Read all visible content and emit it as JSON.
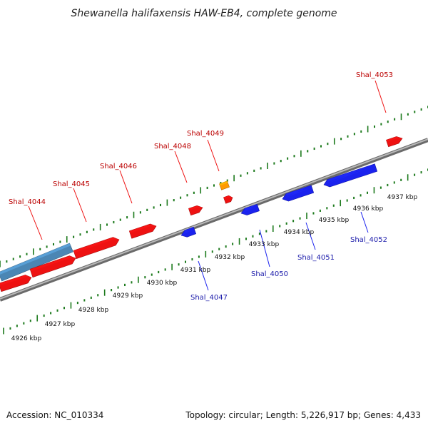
{
  "title": "Shewanella halifaxensis HAW-EB4, complete genome",
  "footer": {
    "accession": "Accession: NC_010334",
    "summary": "Topology: circular; Length: 5,226,917 bp; Genes: 4,433"
  },
  "colors": {
    "forward": "#ee1111",
    "reverse": "#1a22ee",
    "orange": "#ff9900",
    "steelblue": "#4b86b4",
    "backbone": "#888888",
    "ticks": "#1d7a1d",
    "forward_label": "#bb0000",
    "reverse_label": "#1a1aaa"
  },
  "tick_labels": [
    {
      "text": "4926 kbp",
      "kbp": 4926
    },
    {
      "text": "4927 kbp",
      "kbp": 4927
    },
    {
      "text": "4928 kbp",
      "kbp": 4928
    },
    {
      "text": "4929 kbp",
      "kbp": 4929
    },
    {
      "text": "4930 kbp",
      "kbp": 4930
    },
    {
      "text": "4931 kbp",
      "kbp": 4931
    },
    {
      "text": "4932 kbp",
      "kbp": 4932
    },
    {
      "text": "4933 kbp",
      "kbp": 4933
    },
    {
      "text": "4934 kbp",
      "kbp": 4934
    },
    {
      "text": "4935 kbp",
      "kbp": 4935
    },
    {
      "text": "4936 kbp",
      "kbp": 4936
    },
    {
      "text": "4937 kbp",
      "kbp": 4937
    }
  ],
  "genes": [
    {
      "label": "Shal_4044",
      "strand": "forward"
    },
    {
      "label": "Shal_4045",
      "strand": "forward"
    },
    {
      "label": "Shal_4046",
      "strand": "forward"
    },
    {
      "label": "Shal_4047",
      "strand": "reverse"
    },
    {
      "label": "Shal_4048",
      "strand": "forward"
    },
    {
      "label": "Shal_4049",
      "strand": "forward"
    },
    {
      "label": "Shal_4050",
      "strand": "reverse"
    },
    {
      "label": "Shal_4051",
      "strand": "reverse"
    },
    {
      "label": "Shal_4052",
      "strand": "reverse"
    },
    {
      "label": "Shal_4053",
      "strand": "forward"
    }
  ]
}
